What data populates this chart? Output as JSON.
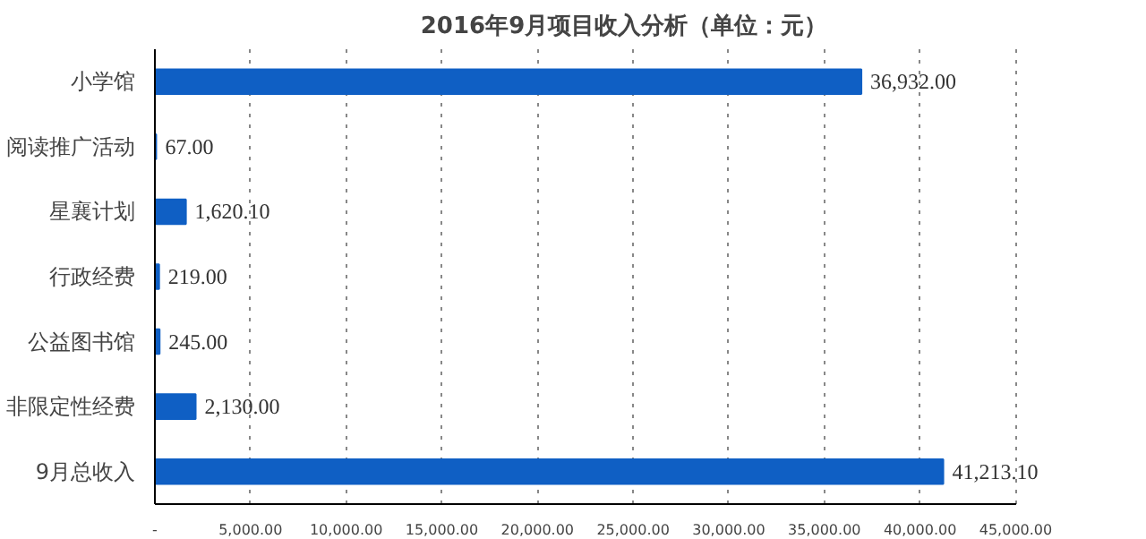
{
  "chart_data": {
    "type": "bar",
    "orientation": "horizontal",
    "title": "2016年9月项目收入分析（单位：元）",
    "categories": [
      "小学馆",
      "阅读推广活动",
      "星襄计划",
      "行政经费",
      "公益图书馆",
      "非限定性经费",
      "9月总收入"
    ],
    "values": [
      36932.0,
      67.0,
      1620.1,
      219.0,
      245.0,
      2130.0,
      41213.1
    ],
    "value_labels": [
      "36,932.00",
      "67.00",
      "1,620.10",
      "219.00",
      "245.00",
      "2,130.00",
      "41,213.10"
    ],
    "color": "#0f5fc4",
    "xlim": [
      0,
      45000
    ],
    "xticks": [
      {
        "value": 0,
        "label": "-"
      },
      {
        "value": 5000,
        "label": "5,000.00"
      },
      {
        "value": 10000,
        "label": "10,000.00"
      },
      {
        "value": 15000,
        "label": "15,000.00"
      },
      {
        "value": 20000,
        "label": "20,000.00"
      },
      {
        "value": 25000,
        "label": "25,000.00"
      },
      {
        "value": 30000,
        "label": "30,000.00"
      },
      {
        "value": 35000,
        "label": "35,000.00"
      },
      {
        "value": 40000,
        "label": "40,000.00"
      },
      {
        "value": 45000,
        "label": "45,000.00"
      }
    ],
    "grid": "x"
  }
}
